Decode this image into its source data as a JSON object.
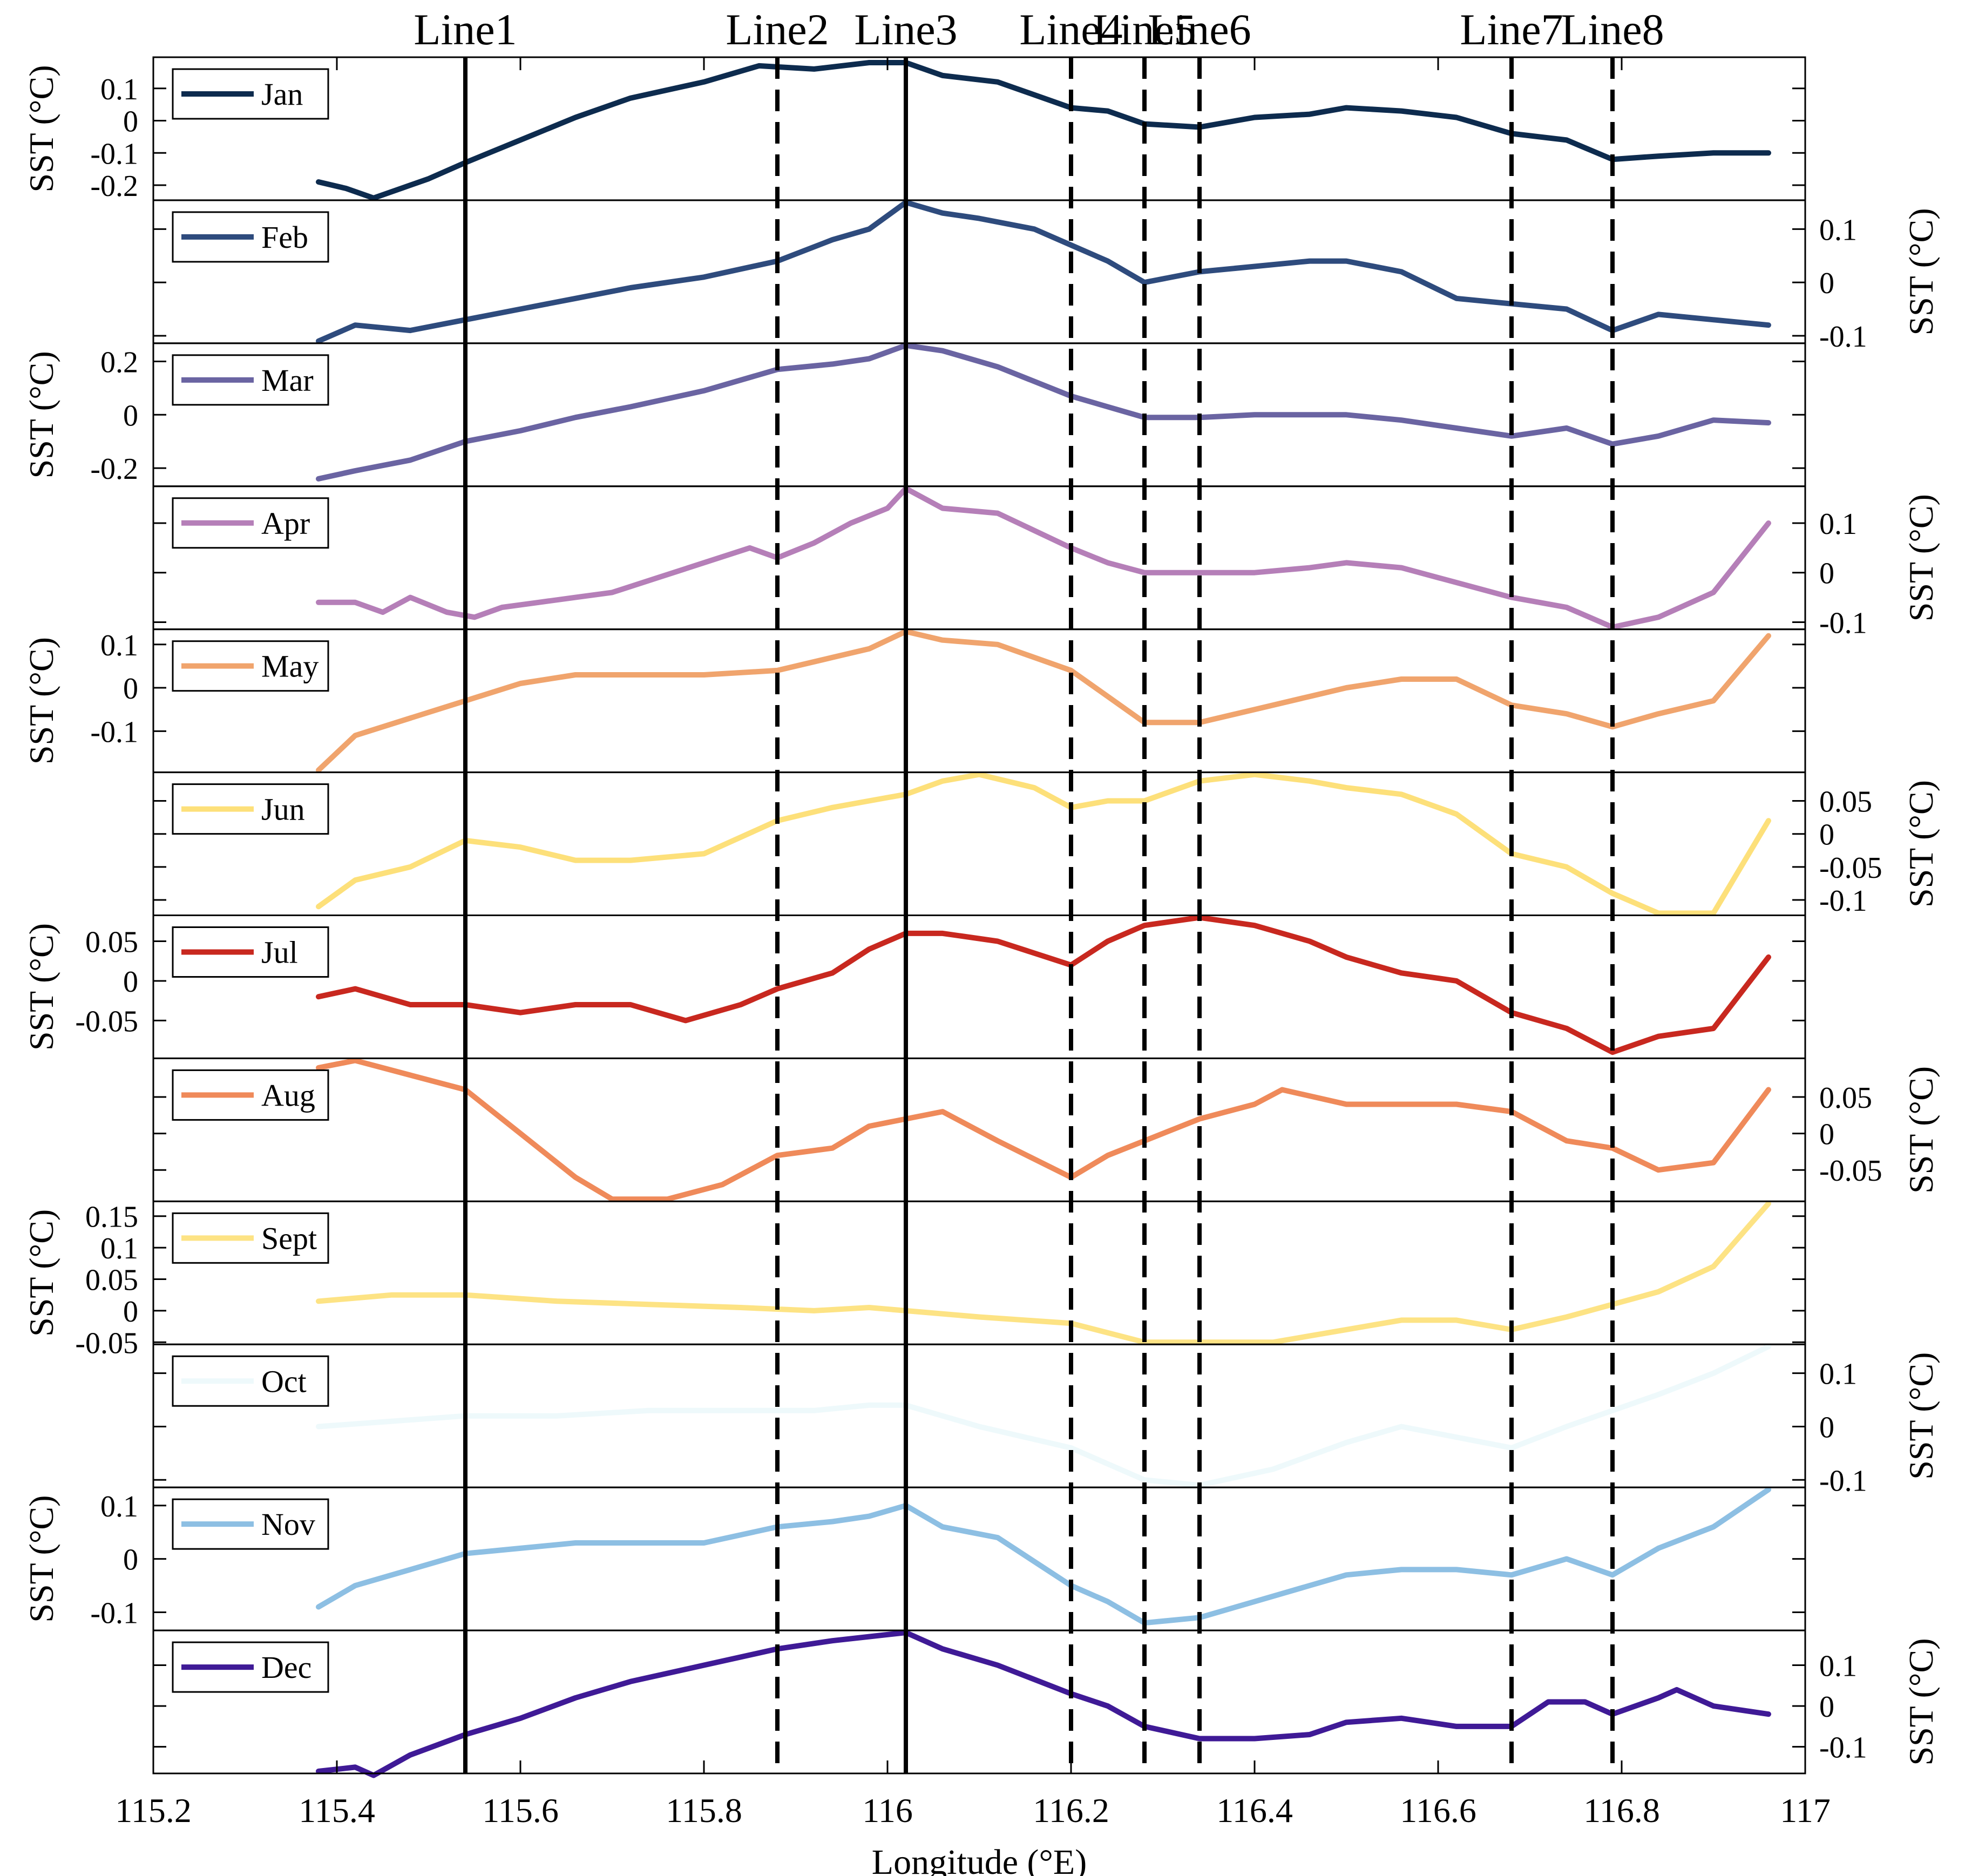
{
  "chart_data": {
    "type": "line",
    "xlabel": "Longitude (°E)",
    "xlim": [
      115.2,
      117
    ],
    "xticks": [
      115.2,
      115.4,
      115.6,
      115.8,
      116,
      116.2,
      116.4,
      116.6,
      116.8,
      117
    ],
    "xtick_labels": [
      "115.2",
      "115.4",
      "115.6",
      "115.8",
      "116",
      "116.2",
      "116.4",
      "116.6",
      "116.8",
      "117"
    ],
    "ylabel": "SST (°C)",
    "grid": false,
    "legend_placement": "top-left of each panel",
    "reference_lines": [
      {
        "label": "Line1",
        "x": 115.54,
        "style": "solid"
      },
      {
        "label": "Line2",
        "x": 115.88,
        "style": "dashed"
      },
      {
        "label": "Line3",
        "x": 116.02,
        "style": "solid"
      },
      {
        "label": "Line4",
        "x": 116.2,
        "style": "dashed"
      },
      {
        "label": "Line5",
        "x": 116.28,
        "style": "dashed"
      },
      {
        "label": "Line6",
        "x": 116.34,
        "style": "dashed"
      },
      {
        "label": "Line7",
        "x": 116.68,
        "style": "dashed"
      },
      {
        "label": "Line8",
        "x": 116.79,
        "style": "dashed"
      }
    ],
    "panels": [
      {
        "name": "Jan",
        "color": "#0d2b4e",
        "axis_side": "left",
        "ylim": [
          -0.24,
          0.19
        ],
        "yticks": [
          0.1,
          0,
          -0.1,
          -0.2
        ],
        "ytick_labels": [
          "0.1",
          "0",
          "-0.1",
          "-0.2"
        ],
        "x": [
          115.38,
          115.41,
          115.44,
          115.47,
          115.5,
          115.54,
          115.6,
          115.66,
          115.72,
          115.8,
          115.86,
          115.92,
          115.98,
          116.02,
          116.06,
          116.12,
          116.2,
          116.24,
          116.28,
          116.34,
          116.4,
          116.46,
          116.5,
          116.56,
          116.62,
          116.68,
          116.74,
          116.79,
          116.84,
          116.9,
          116.96
        ],
        "y": [
          -0.19,
          -0.21,
          -0.24,
          -0.21,
          -0.18,
          -0.13,
          -0.06,
          0.01,
          0.07,
          0.12,
          0.17,
          0.16,
          0.18,
          0.18,
          0.14,
          0.12,
          0.04,
          0.03,
          -0.01,
          -0.02,
          0.01,
          0.02,
          0.04,
          0.03,
          0.01,
          -0.04,
          -0.06,
          -0.12,
          -0.11,
          -0.1,
          -0.1
        ]
      },
      {
        "name": "Feb",
        "color": "#2e4b7d",
        "axis_side": "right",
        "ylim": [
          -0.11,
          0.15
        ],
        "yticks": [
          0.1,
          0,
          -0.1
        ],
        "ytick_labels": [
          "0.1",
          "0",
          "-0.1"
        ],
        "x": [
          115.38,
          115.42,
          115.48,
          115.54,
          115.6,
          115.66,
          115.72,
          115.8,
          115.88,
          115.94,
          115.98,
          116.02,
          116.06,
          116.1,
          116.16,
          116.2,
          116.24,
          116.28,
          116.34,
          116.4,
          116.46,
          116.5,
          116.56,
          116.62,
          116.68,
          116.74,
          116.79,
          116.84,
          116.9,
          116.96
        ],
        "y": [
          -0.11,
          -0.08,
          -0.09,
          -0.07,
          -0.05,
          -0.03,
          -0.01,
          0.01,
          0.04,
          0.08,
          0.1,
          0.15,
          0.13,
          0.12,
          0.1,
          0.07,
          0.04,
          0.0,
          0.02,
          0.03,
          0.04,
          0.04,
          0.02,
          -0.03,
          -0.04,
          -0.05,
          -0.09,
          -0.06,
          -0.07,
          -0.08
        ]
      },
      {
        "name": "Mar",
        "color": "#6a64a2",
        "axis_side": "left",
        "ylim": [
          -0.26,
          0.26
        ],
        "yticks": [
          0.2,
          0,
          -0.2
        ],
        "ytick_labels": [
          "0.2",
          "0",
          "-0.2"
        ],
        "x": [
          115.38,
          115.42,
          115.48,
          115.54,
          115.6,
          115.66,
          115.72,
          115.8,
          115.88,
          115.94,
          115.98,
          116.02,
          116.06,
          116.12,
          116.2,
          116.24,
          116.28,
          116.34,
          116.4,
          116.46,
          116.5,
          116.56,
          116.62,
          116.68,
          116.74,
          116.79,
          116.84,
          116.9,
          116.96
        ],
        "y": [
          -0.24,
          -0.21,
          -0.17,
          -0.1,
          -0.06,
          -0.01,
          0.03,
          0.09,
          0.17,
          0.19,
          0.21,
          0.26,
          0.24,
          0.18,
          0.07,
          0.03,
          -0.01,
          -0.01,
          0.0,
          0.0,
          0.0,
          -0.02,
          -0.05,
          -0.08,
          -0.05,
          -0.11,
          -0.08,
          -0.02,
          -0.03
        ]
      },
      {
        "name": "Apr",
        "color": "#b57fb8",
        "axis_side": "right",
        "ylim": [
          -0.11,
          0.17
        ],
        "yticks": [
          0.1,
          0,
          -0.1
        ],
        "ytick_labels": [
          "0.1",
          "0",
          "-0.1"
        ],
        "x": [
          115.38,
          115.42,
          115.45,
          115.48,
          115.52,
          115.55,
          115.58,
          115.62,
          115.66,
          115.7,
          115.75,
          115.8,
          115.85,
          115.88,
          115.92,
          115.96,
          116.0,
          116.02,
          116.06,
          116.12,
          116.2,
          116.24,
          116.28,
          116.34,
          116.4,
          116.46,
          116.5,
          116.56,
          116.62,
          116.68,
          116.74,
          116.79,
          116.84,
          116.9,
          116.96
        ],
        "y": [
          -0.06,
          -0.06,
          -0.08,
          -0.05,
          -0.08,
          -0.09,
          -0.07,
          -0.06,
          -0.05,
          -0.04,
          -0.01,
          0.02,
          0.05,
          0.03,
          0.06,
          0.1,
          0.13,
          0.17,
          0.13,
          0.12,
          0.05,
          0.02,
          0.0,
          0.0,
          0.0,
          0.01,
          0.02,
          0.01,
          -0.02,
          -0.05,
          -0.07,
          -0.11,
          -0.09,
          -0.04,
          0.1
        ]
      },
      {
        "name": "May",
        "color": "#f0a46d",
        "axis_side": "left",
        "ylim": [
          -0.19,
          0.13
        ],
        "yticks": [
          0.1,
          0,
          -0.1
        ],
        "ytick_labels": [
          "0.1",
          "0",
          "-0.1"
        ],
        "x": [
          115.38,
          115.42,
          115.48,
          115.54,
          115.6,
          115.66,
          115.72,
          115.8,
          115.88,
          115.94,
          115.98,
          116.02,
          116.06,
          116.12,
          116.2,
          116.24,
          116.28,
          116.34,
          116.4,
          116.46,
          116.5,
          116.56,
          116.62,
          116.68,
          116.74,
          116.79,
          116.84,
          116.9,
          116.96
        ],
        "y": [
          -0.19,
          -0.11,
          -0.07,
          -0.03,
          0.01,
          0.03,
          0.03,
          0.03,
          0.04,
          0.07,
          0.09,
          0.13,
          0.11,
          0.1,
          0.04,
          -0.02,
          -0.08,
          -0.08,
          -0.05,
          -0.02,
          0.0,
          0.02,
          0.02,
          -0.04,
          -0.06,
          -0.09,
          -0.06,
          -0.03,
          0.12
        ]
      },
      {
        "name": "Jun",
        "color": "#fde07a",
        "axis_side": "right",
        "ylim": [
          -0.12,
          0.09
        ],
        "yticks": [
          0.05,
          0,
          -0.05,
          -0.1
        ],
        "ytick_labels": [
          "0.05",
          "0",
          "-0.05",
          "-0.1"
        ],
        "x": [
          115.38,
          115.42,
          115.48,
          115.54,
          115.6,
          115.66,
          115.72,
          115.8,
          115.88,
          115.94,
          115.98,
          116.02,
          116.06,
          116.1,
          116.16,
          116.2,
          116.24,
          116.28,
          116.34,
          116.4,
          116.46,
          116.5,
          116.56,
          116.62,
          116.68,
          116.74,
          116.79,
          116.84,
          116.9,
          116.96
        ],
        "y": [
          -0.11,
          -0.07,
          -0.05,
          -0.01,
          -0.02,
          -0.04,
          -0.04,
          -0.03,
          0.02,
          0.04,
          0.05,
          0.06,
          0.08,
          0.09,
          0.07,
          0.04,
          0.05,
          0.05,
          0.08,
          0.09,
          0.08,
          0.07,
          0.06,
          0.03,
          -0.03,
          -0.05,
          -0.09,
          -0.12,
          -0.12,
          0.02
        ]
      },
      {
        "name": "Jul",
        "color": "#c8281f",
        "axis_side": "left",
        "ylim": [
          -0.095,
          0.08
        ],
        "yticks": [
          0.05,
          0,
          -0.05
        ],
        "ytick_labels": [
          "0.05",
          "0",
          "-0.05"
        ],
        "x": [
          115.38,
          115.42,
          115.48,
          115.54,
          115.6,
          115.66,
          115.72,
          115.78,
          115.84,
          115.88,
          115.94,
          115.98,
          116.02,
          116.06,
          116.12,
          116.2,
          116.24,
          116.28,
          116.34,
          116.4,
          116.46,
          116.5,
          116.56,
          116.62,
          116.68,
          116.74,
          116.79,
          116.84,
          116.9,
          116.96
        ],
        "y": [
          -0.02,
          -0.01,
          -0.03,
          -0.03,
          -0.04,
          -0.03,
          -0.03,
          -0.05,
          -0.03,
          -0.01,
          0.01,
          0.04,
          0.06,
          0.06,
          0.05,
          0.02,
          0.05,
          0.07,
          0.08,
          0.07,
          0.05,
          0.03,
          0.01,
          0.0,
          -0.04,
          -0.06,
          -0.09,
          -0.07,
          -0.06,
          0.03
        ]
      },
      {
        "name": "Aug",
        "color": "#ef8a5a",
        "axis_side": "right",
        "ylim": [
          -0.09,
          0.1
        ],
        "yticks": [
          0.05,
          0,
          -0.05
        ],
        "ytick_labels": [
          "0.05",
          "0",
          "-0.05"
        ],
        "x": [
          115.38,
          115.42,
          115.48,
          115.54,
          115.6,
          115.66,
          115.7,
          115.76,
          115.82,
          115.88,
          115.94,
          115.98,
          116.02,
          116.06,
          116.12,
          116.2,
          116.24,
          116.28,
          116.34,
          116.4,
          116.43,
          116.5,
          116.56,
          116.62,
          116.68,
          116.74,
          116.79,
          116.84,
          116.9,
          116.96
        ],
        "y": [
          0.09,
          0.1,
          0.08,
          0.06,
          0.0,
          -0.06,
          -0.09,
          -0.09,
          -0.07,
          -0.03,
          -0.02,
          0.01,
          0.02,
          0.03,
          -0.01,
          -0.06,
          -0.03,
          -0.01,
          0.02,
          0.04,
          0.06,
          0.04,
          0.04,
          0.04,
          0.03,
          -0.01,
          -0.02,
          -0.05,
          -0.04,
          0.06
        ]
      },
      {
        "name": "Sept",
        "color": "#fde384",
        "axis_side": "left",
        "ylim": [
          -0.05,
          0.17
        ],
        "yticks": [
          0.15,
          0.1,
          0.05,
          0,
          -0.05
        ],
        "ytick_labels": [
          "0.15",
          "0.1",
          "0.05",
          "0",
          "-0.05"
        ],
        "x": [
          115.38,
          115.46,
          115.54,
          115.64,
          115.74,
          115.84,
          115.92,
          115.98,
          116.02,
          116.1,
          116.2,
          116.28,
          116.34,
          116.42,
          116.5,
          116.56,
          116.62,
          116.68,
          116.74,
          116.79,
          116.84,
          116.9,
          116.96
        ],
        "y": [
          0.015,
          0.025,
          0.025,
          0.015,
          0.01,
          0.005,
          0.0,
          0.005,
          0.0,
          -0.01,
          -0.02,
          -0.05,
          -0.05,
          -0.05,
          -0.03,
          -0.015,
          -0.015,
          -0.03,
          -0.01,
          0.01,
          0.03,
          0.07,
          0.17
        ]
      },
      {
        "name": "Oct",
        "color": "#eef9fb",
        "axis_side": "right",
        "ylim": [
          -0.11,
          0.15
        ],
        "yticks": [
          0.1,
          0,
          -0.1
        ],
        "ytick_labels": [
          "0.1",
          "0",
          "-0.1"
        ],
        "x": [
          115.38,
          115.46,
          115.54,
          115.64,
          115.74,
          115.84,
          115.92,
          115.98,
          116.02,
          116.1,
          116.2,
          116.28,
          116.34,
          116.42,
          116.5,
          116.56,
          116.62,
          116.68,
          116.74,
          116.79,
          116.84,
          116.9,
          116.96
        ],
        "y": [
          0.0,
          0.01,
          0.02,
          0.02,
          0.03,
          0.03,
          0.03,
          0.04,
          0.04,
          0.0,
          -0.04,
          -0.1,
          -0.11,
          -0.08,
          -0.03,
          0.0,
          -0.02,
          -0.04,
          0.0,
          0.03,
          0.06,
          0.1,
          0.15
        ]
      },
      {
        "name": "Nov",
        "color": "#8dbfe3",
        "axis_side": "left",
        "ylim": [
          -0.13,
          0.13
        ],
        "yticks": [
          0.1,
          0,
          -0.1
        ],
        "ytick_labels": [
          "0.1",
          "0",
          "-0.1"
        ],
        "x": [
          115.38,
          115.42,
          115.48,
          115.54,
          115.6,
          115.66,
          115.72,
          115.8,
          115.88,
          115.94,
          115.98,
          116.02,
          116.06,
          116.12,
          116.2,
          116.24,
          116.28,
          116.34,
          116.4,
          116.46,
          116.5,
          116.56,
          116.62,
          116.68,
          116.74,
          116.79,
          116.84,
          116.9,
          116.96
        ],
        "y": [
          -0.09,
          -0.05,
          -0.02,
          0.01,
          0.02,
          0.03,
          0.03,
          0.03,
          0.06,
          0.07,
          0.08,
          0.1,
          0.06,
          0.04,
          -0.05,
          -0.08,
          -0.12,
          -0.11,
          -0.08,
          -0.05,
          -0.03,
          -0.02,
          -0.02,
          -0.03,
          0.0,
          -0.03,
          0.02,
          0.06,
          0.13
        ]
      },
      {
        "name": "Dec",
        "color": "#3f1a96",
        "axis_side": "right",
        "ylim": [
          -0.16,
          0.18
        ],
        "yticks": [
          0.1,
          0,
          -0.1
        ],
        "ytick_labels": [
          "0.1",
          "0",
          "-0.1"
        ],
        "x": [
          115.38,
          115.42,
          115.44,
          115.48,
          115.54,
          115.6,
          115.66,
          115.72,
          115.8,
          115.88,
          115.94,
          115.98,
          116.02,
          116.06,
          116.12,
          116.2,
          116.24,
          116.28,
          116.34,
          116.4,
          116.46,
          116.5,
          116.56,
          116.62,
          116.68,
          116.72,
          116.76,
          116.79,
          116.84,
          116.86,
          116.9,
          116.96
        ],
        "y": [
          -0.16,
          -0.15,
          -0.17,
          -0.12,
          -0.07,
          -0.03,
          0.02,
          0.06,
          0.1,
          0.14,
          0.16,
          0.17,
          0.18,
          0.14,
          0.1,
          0.03,
          0.0,
          -0.05,
          -0.08,
          -0.08,
          -0.07,
          -0.04,
          -0.03,
          -0.05,
          -0.05,
          0.01,
          0.01,
          -0.02,
          0.02,
          0.04,
          0.0,
          -0.02
        ]
      }
    ]
  }
}
